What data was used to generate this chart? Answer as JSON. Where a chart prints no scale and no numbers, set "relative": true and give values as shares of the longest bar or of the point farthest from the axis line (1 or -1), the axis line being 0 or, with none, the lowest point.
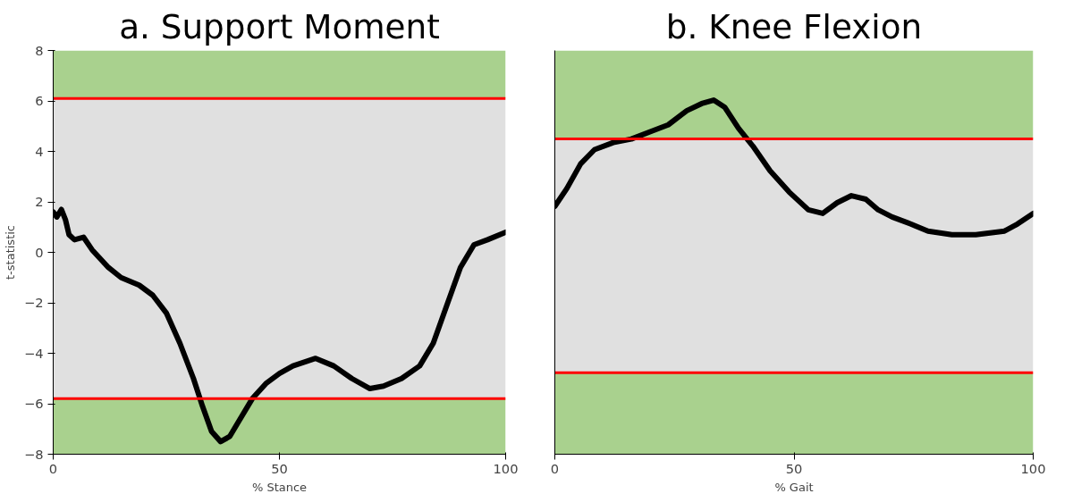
{
  "chart_data": [
    {
      "type": "line",
      "title": "a. Support Moment",
      "xlabel": "% Stance",
      "ylabel": "t-statistic",
      "xlim": [
        0,
        100
      ],
      "xticks": [
        0,
        50,
        100
      ],
      "ylim": [
        -8,
        8
      ],
      "yticks": [
        -8,
        -6,
        -4,
        -2,
        0,
        2,
        4,
        6,
        8
      ],
      "line_style": "solid",
      "series": [
        {
          "color": "#000000",
          "x": [
            0,
            0.8,
            1.8,
            2.7,
            3.5,
            4.7,
            6.7,
            8.6,
            12.2,
            15,
            19,
            22,
            25,
            28,
            31,
            33,
            35,
            37,
            39,
            41,
            44,
            47,
            50,
            53,
            58,
            62,
            66,
            70,
            73,
            77,
            81,
            84,
            87,
            90,
            93,
            96,
            100
          ],
          "values": [
            1.6,
            1.4,
            1.7,
            1.3,
            0.7,
            0.5,
            0.6,
            0.1,
            -0.6,
            -1,
            -1.3,
            -1.7,
            -2.4,
            -3.6,
            -5,
            -6.1,
            -7.1,
            -7.5,
            -7.3,
            -6.7,
            -5.8,
            -5.2,
            -4.8,
            -4.5,
            -4.2,
            -4.5,
            -5,
            -5.4,
            -5.3,
            -5,
            -4.5,
            -3.6,
            -2.1,
            -0.6,
            0.3,
            0.5,
            0.8
          ]
        }
      ],
      "bands": [
        {
          "axis": "y",
          "from": 6.1,
          "to": 8,
          "color": "#a9d18e"
        },
        {
          "axis": "y",
          "from": -5.8,
          "to": 6.1,
          "color": "#e0e0e0"
        },
        {
          "axis": "y",
          "from": -8,
          "to": -5.8,
          "color": "#a9d18e"
        }
      ],
      "ref_lines": [
        {
          "axis": "y",
          "value": 6.1,
          "color": "#ff0000"
        },
        {
          "axis": "y",
          "value": -5.8,
          "color": "#ff0000"
        }
      ]
    },
    {
      "type": "line",
      "title": "b. Knee Flexion",
      "xlabel": "% Gait",
      "xlim": [
        0,
        100
      ],
      "xticks": [
        0,
        50,
        100
      ],
      "relative": true,
      "line_style": "solid",
      "series": [
        {
          "color": "#000000",
          "x": [
            0,
            2.5,
            5.4,
            8.3,
            12.2,
            16,
            19.8,
            23.7,
            27.6,
            30.7,
            33.2,
            35.5,
            38.4,
            41.4,
            45,
            49,
            53,
            56,
            59,
            62,
            65,
            67.6,
            70.5,
            74.4,
            78,
            83,
            88,
            94,
            96.7,
            100
          ],
          "values": [
            0.7,
            0.75,
            0.82,
            0.86,
            0.88,
            0.89,
            0.91,
            0.93,
            0.97,
            0.99,
            1.0,
            0.98,
            0.92,
            0.87,
            0.8,
            0.74,
            0.69,
            0.68,
            0.71,
            0.73,
            0.72,
            0.69,
            0.67,
            0.65,
            0.63,
            0.62,
            0.62,
            0.63,
            0.65,
            0.68
          ]
        }
      ],
      "bands": [
        {
          "axis": "y",
          "from": 0.89,
          "to": 1.14,
          "color": "#a9d18e"
        },
        {
          "axis": "y",
          "from": 0.23,
          "to": 0.89,
          "color": "#e0e0e0"
        },
        {
          "axis": "y",
          "from": 0,
          "to": 0.23,
          "color": "#a9d18e"
        }
      ],
      "ref_lines": [
        {
          "axis": "y",
          "value": 0.89,
          "color": "#ff0000"
        },
        {
          "axis": "y",
          "value": 0.23,
          "color": "#ff0000"
        }
      ]
    }
  ]
}
